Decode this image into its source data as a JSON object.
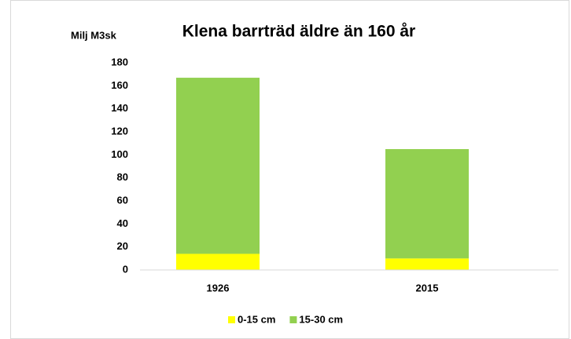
{
  "chart_data": {
    "type": "stacked_bar",
    "title": "Klena barrträd äldre än 160 år",
    "y_label": "Milj M3sk",
    "categories": [
      "1926",
      "2015"
    ],
    "series": [
      {
        "name": "0-15 cm",
        "color": "#ffff00",
        "values": [
          14,
          10
        ]
      },
      {
        "name": "15-30 cm",
        "color": "#92d050",
        "values": [
          153,
          95
        ]
      }
    ],
    "ylim": [
      0,
      180
    ],
    "yticks": [
      0,
      20,
      40,
      60,
      80,
      100,
      120,
      140,
      160,
      180
    ],
    "grid": false,
    "legend": "bottom"
  }
}
